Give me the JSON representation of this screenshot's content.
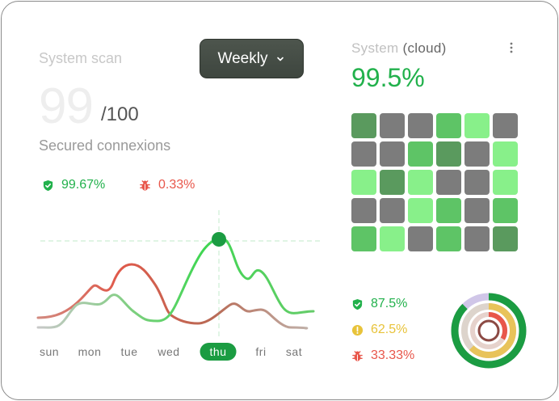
{
  "left": {
    "title": "System scan",
    "dropdown_label": "Weekly",
    "score": "99",
    "score_max": "/100",
    "subtitle": "Secured connexions",
    "secure_pct": "99.67%",
    "threat_pct": "0.33%"
  },
  "days": [
    {
      "label": "sun",
      "active": false
    },
    {
      "label": "mon",
      "active": false
    },
    {
      "label": "tue",
      "active": false
    },
    {
      "label": "wed",
      "active": false
    },
    {
      "label": "thu",
      "active": true
    },
    {
      "label": "fri",
      "active": false
    },
    {
      "label": "sat",
      "active": false
    }
  ],
  "right": {
    "title": "System",
    "title_sub": "(cloud)",
    "uptime": "99.5%",
    "legend": [
      {
        "icon": "shield-check-icon",
        "value": "87.5%",
        "color": "#22b14c"
      },
      {
        "icon": "warning-icon",
        "value": "62.5%",
        "color": "#e8c33a"
      },
      {
        "icon": "bug-icon",
        "value": "33.33%",
        "color": "#e8564a"
      }
    ],
    "grid": [
      [
        "dark",
        "gray",
        "gray",
        "mid",
        "light",
        "gray"
      ],
      [
        "gray",
        "gray",
        "mid",
        "dark",
        "gray",
        "light"
      ],
      [
        "light",
        "dark",
        "light",
        "gray",
        "gray",
        "light"
      ],
      [
        "gray",
        "gray",
        "light",
        "mid",
        "gray",
        "mid"
      ],
      [
        "mid",
        "light",
        "gray",
        "mid",
        "gray",
        "dark"
      ]
    ]
  },
  "colors": {
    "dark": "#5a9a5e",
    "mid": "#5ec466",
    "light": "#88f08a",
    "gray": "#7c7c7c"
  }
}
